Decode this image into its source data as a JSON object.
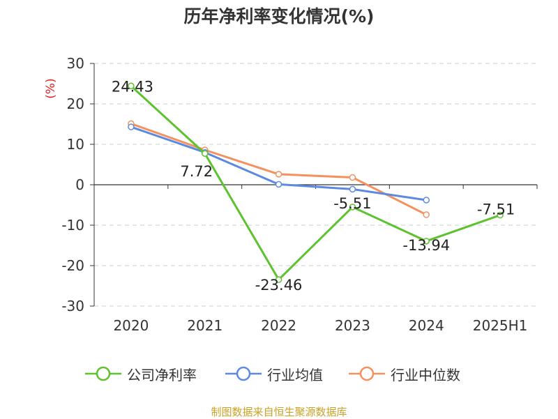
{
  "chart_data": {
    "type": "line",
    "title": "历年净利率变化情况(%)",
    "ylabel": "(%)",
    "categories": [
      "2020",
      "2021",
      "2022",
      "2023",
      "2024",
      "2025H1"
    ],
    "ylim": [
      -30,
      30
    ],
    "yticks": [
      "30",
      "20",
      "10",
      "0",
      "-10",
      "-20",
      "-30"
    ],
    "grid": true,
    "legend_position": "bottom",
    "series": [
      {
        "name": "公司净利率",
        "color": "#5cc22d",
        "values": [
          24.43,
          7.72,
          -23.46,
          -5.51,
          -13.94,
          -7.51
        ],
        "labels": [
          "24.43",
          "7.72",
          "-23.46",
          "-5.51",
          "-13.94",
          "-7.51"
        ]
      },
      {
        "name": "行业均值",
        "color": "#5b8ae0",
        "values": [
          14.3,
          8.0,
          0.1,
          -1.1,
          -3.8,
          null
        ]
      },
      {
        "name": "行业中位数",
        "color": "#f4915e",
        "values": [
          15.1,
          8.6,
          2.6,
          1.8,
          -7.4,
          null
        ]
      }
    ]
  },
  "footer": {
    "source": "制图数据来自恒生聚源数据库"
  }
}
